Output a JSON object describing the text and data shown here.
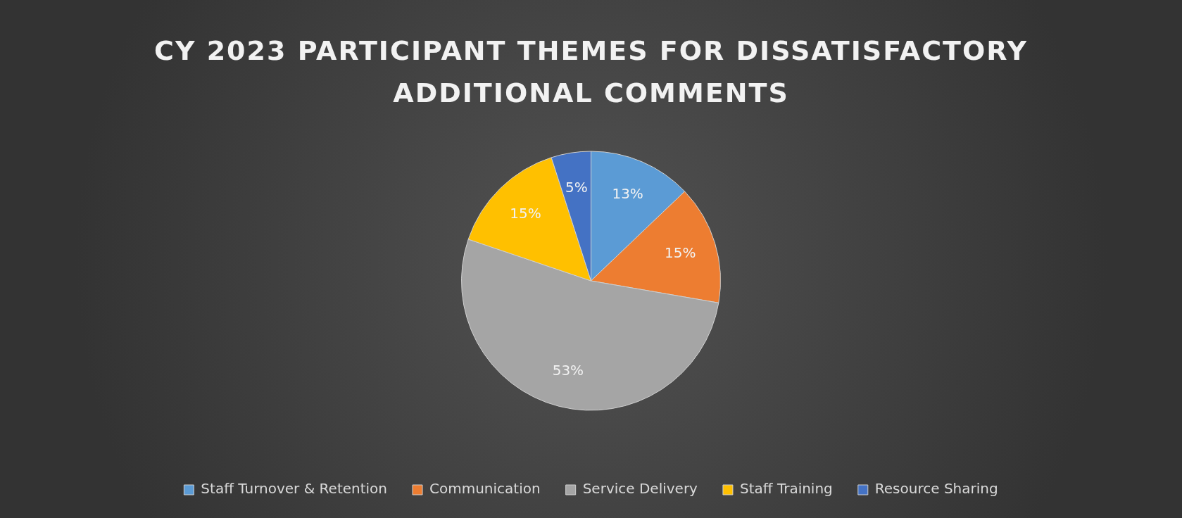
{
  "chart_data": {
    "type": "pie",
    "title": "CY 2023 PARTICIPANT THEMES FOR DISSATISFACTORY ADDITIONAL COMMENTS",
    "categories": [
      "Staff Turnover & Retention",
      "Communication",
      "Service Delivery",
      "Staff Training",
      "Resource Sharing"
    ],
    "values": [
      13,
      15,
      53,
      15,
      5
    ],
    "value_labels": [
      "13%",
      "15%",
      "53%",
      "15%",
      "5%"
    ],
    "colors": [
      "#5b9bd5",
      "#ed7d31",
      "#a5a5a5",
      "#ffc000",
      "#4472c4"
    ],
    "legend": "bottom"
  }
}
